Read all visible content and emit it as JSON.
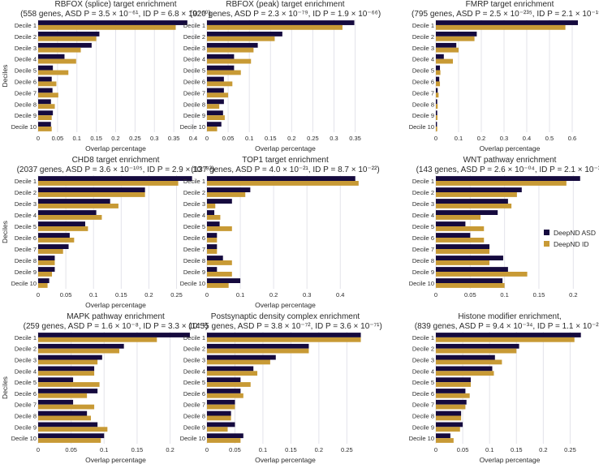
{
  "colors": {
    "asd": "#150a3e",
    "id": "#c89a35",
    "grid": "#e3e3ea",
    "text": "#2a2a2a"
  },
  "legend": {
    "items": [
      "DeepND ASD",
      "DeepND ID"
    ],
    "placement": "right, middle row"
  },
  "chart_data": [
    {
      "type": "bar",
      "orientation": "horizontal",
      "title": "RBFOX (splice) target enrichment",
      "subtitle": "(558 genes, ASD P = 3.5 × 10⁻⁶¹, ID P = 6.8 × 10⁻⁵⁰)",
      "xlabel": "Overlap percentage",
      "ylabel": "Deciles",
      "xlim": [
        0,
        0.4
      ],
      "xticks": [
        0,
        0.05,
        0.1,
        0.15,
        0.2,
        0.25,
        0.3,
        0.35,
        0.4
      ],
      "xtick_labels": [
        "0",
        "0.05",
        "0.1",
        "0.15",
        "0.2",
        "0.25",
        "0.3",
        "0.35",
        "0.4"
      ],
      "categories": [
        "Decile 1",
        "Decile 2",
        "Decile 3",
        "Decile 4",
        "Decile 5",
        "Decile 6",
        "Decile 7",
        "Decile 8",
        "Decile 9",
        "Decile 10"
      ],
      "series": [
        {
          "name": "DeepND ASD",
          "values": [
            0.385,
            0.158,
            0.138,
            0.068,
            0.038,
            0.035,
            0.037,
            0.033,
            0.038,
            0.033
          ]
        },
        {
          "name": "DeepND ID",
          "values": [
            0.355,
            0.15,
            0.11,
            0.098,
            0.078,
            0.047,
            0.052,
            0.043,
            0.035,
            0.035
          ]
        }
      ]
    },
    {
      "type": "bar",
      "orientation": "horizontal",
      "title": "RBFOX (peak) target enrichment",
      "subtitle": "(920 genes, ASD P = 2.3 × 10⁻⁷⁹, ID P = 1.9 × 10⁻⁶⁶)",
      "xlabel": "Overlap percentage",
      "ylabel": "",
      "xlim": [
        0,
        0.37
      ],
      "xticks": [
        0,
        0.05,
        0.1,
        0.15,
        0.2,
        0.25,
        0.3,
        0.35
      ],
      "xtick_labels": [
        "0",
        "0.05",
        "0.1",
        "0.15",
        "0.2",
        "0.25",
        "0.3",
        "0.35"
      ],
      "categories": [
        "Decile 1",
        "Decile 2",
        "Decile 3",
        "Decile 4",
        "Decile 5",
        "Decile 6",
        "Decile 7",
        "Decile 8",
        "Decile 9",
        "Decile 10"
      ],
      "series": [
        {
          "name": "DeepND ASD",
          "values": [
            0.348,
            0.178,
            0.12,
            0.064,
            0.064,
            0.04,
            0.04,
            0.04,
            0.038,
            0.034
          ]
        },
        {
          "name": "DeepND ID",
          "values": [
            0.32,
            0.16,
            0.11,
            0.104,
            0.08,
            0.06,
            0.05,
            0.029,
            0.042,
            0.024
          ]
        }
      ]
    },
    {
      "type": "bar",
      "orientation": "horizontal",
      "title": "FMRP target enrichment",
      "subtitle": "(795 genes, ASD P = 2.5 × 10⁻²³⁵, ID P = 2.1 × 10⁻¹⁹⁴)",
      "xlabel": "Overlap percentage",
      "ylabel": "",
      "xlim": [
        0,
        0.65
      ],
      "xticks": [
        0,
        0.1,
        0.2,
        0.3,
        0.4,
        0.5,
        0.6
      ],
      "xtick_labels": [
        "0",
        "0.1",
        "0.2",
        "0.3",
        "0.4",
        "0.5",
        "0.6"
      ],
      "categories": [
        "Decile 1",
        "Decile 2",
        "Decile 3",
        "Decile 4",
        "Decile 5",
        "Decile 6",
        "Decile 7",
        "Decile 8",
        "Decile 9",
        "Decile 10"
      ],
      "series": [
        {
          "name": "DeepND ASD",
          "values": [
            0.625,
            0.18,
            0.09,
            0.035,
            0.018,
            0.015,
            0.008,
            0.006,
            0.006,
            0.005
          ]
        },
        {
          "name": "DeepND ID",
          "values": [
            0.57,
            0.17,
            0.1,
            0.075,
            0.02,
            0.018,
            0.012,
            0.008,
            0.007,
            0.006
          ]
        }
      ]
    },
    {
      "type": "bar",
      "orientation": "horizontal",
      "title": "CHD8 target enrichment",
      "subtitle": "(2037 genes, ASD P = 3.6 × 10⁻¹⁰⁵, ID P = 2.9 × 10⁻⁸³)",
      "xlabel": "Overlap percentage",
      "ylabel": "Deciles",
      "xlim": [
        0,
        0.28
      ],
      "xticks": [
        0,
        0.05,
        0.1,
        0.15,
        0.2,
        0.25
      ],
      "xtick_labels": [
        "0",
        "0.05",
        "0.1",
        "0.15",
        "0.2",
        "0.25"
      ],
      "categories": [
        "Decile 1",
        "Decile 2",
        "Decile 3",
        "Decile 4",
        "Decile 5",
        "Decile 6",
        "Decile 7",
        "Decile 8",
        "Decile 9",
        "Decile 10"
      ],
      "series": [
        {
          "name": "DeepND ASD",
          "values": [
            0.278,
            0.193,
            0.13,
            0.105,
            0.085,
            0.057,
            0.055,
            0.03,
            0.03,
            0.02
          ]
        },
        {
          "name": "DeepND ID",
          "values": [
            0.253,
            0.193,
            0.145,
            0.115,
            0.09,
            0.065,
            0.045,
            0.03,
            0.025,
            0.017
          ]
        }
      ]
    },
    {
      "type": "bar",
      "orientation": "horizontal",
      "title": "TOP1 target enrichment",
      "subtitle": "(137 genes, ASD P = 4.0 × 10⁻²¹, ID P = 8.7 × 10⁻²²)",
      "xlabel": "Overlap percentage",
      "ylabel": "",
      "xlim": [
        0,
        0.47
      ],
      "xticks": [
        0,
        0.1,
        0.2,
        0.3,
        0.4
      ],
      "xtick_labels": [
        "0",
        "0.1",
        "0.2",
        "0.3",
        "0.4"
      ],
      "categories": [
        "Decile 1",
        "Decile 2",
        "Decile 3",
        "Decile 4",
        "Decile 5",
        "Decile 6",
        "Decile 7",
        "Decile 8",
        "Decile 9",
        "Decile 10"
      ],
      "series": [
        {
          "name": "DeepND ASD",
          "values": [
            0.445,
            0.13,
            0.075,
            0.022,
            0.038,
            0.03,
            0.03,
            0.048,
            0.03,
            0.1
          ]
        },
        {
          "name": "DeepND ID",
          "values": [
            0.455,
            0.115,
            0.025,
            0.04,
            0.075,
            0.03,
            0.03,
            0.075,
            0.075,
            0.065
          ]
        }
      ]
    },
    {
      "type": "bar",
      "orientation": "horizontal",
      "title": "WNT pathway enrichment",
      "subtitle": "(143 genes, ASD P = 2.6 × 10⁻⁰⁴, ID P = 2.1 × 10⁻³)",
      "xlabel": "",
      "ylabel": "",
      "xlim": [
        0,
        0.215
      ],
      "xticks": [
        0,
        0.05,
        0.1,
        0.15,
        0.2
      ],
      "xtick_labels": [
        "0",
        "0.05",
        "0.1",
        "0.15",
        "0.2"
      ],
      "categories": [
        "Decile 1",
        "Decile 2",
        "Decile 3",
        "Decile 4",
        "Decile 5",
        "Decile 6",
        "Decile 7",
        "Decile 8",
        "Decile 9",
        "Decile 10"
      ],
      "series": [
        {
          "name": "DeepND ASD",
          "values": [
            0.21,
            0.125,
            0.105,
            0.09,
            0.043,
            0.05,
            0.078,
            0.098,
            0.105,
            0.097
          ]
        },
        {
          "name": "DeepND ID",
          "values": [
            0.19,
            0.118,
            0.11,
            0.065,
            0.07,
            0.07,
            0.078,
            0.078,
            0.133,
            0.1
          ]
        }
      ]
    },
    {
      "type": "bar",
      "orientation": "horizontal",
      "title": "MAPK pathway enrichment",
      "subtitle": "(259 genes, ASD P = 1.6 × 10⁻⁸, ID P = 3.3 × 10⁻⁴)",
      "xlabel": "Overlap percentage",
      "ylabel": "Deciles",
      "xlim": [
        0,
        0.235
      ],
      "xticks": [
        0,
        0.05,
        0.1,
        0.15,
        0.2
      ],
      "xtick_labels": [
        "0",
        "0.05",
        "0.1",
        "0.15",
        "0.2"
      ],
      "categories": [
        "Decile 1",
        "Decile 2",
        "Decile 3",
        "Decile 4",
        "Decile 5",
        "Decile 6",
        "Decile 7",
        "Decile 8",
        "Decile 9",
        "Decile 10"
      ],
      "series": [
        {
          "name": "DeepND ASD",
          "values": [
            0.23,
            0.13,
            0.097,
            0.085,
            0.053,
            0.09,
            0.053,
            0.074,
            0.09,
            0.1
          ]
        },
        {
          "name": "DeepND ID",
          "values": [
            0.18,
            0.123,
            0.09,
            0.085,
            0.093,
            0.074,
            0.085,
            0.08,
            0.105,
            0.095
          ]
        }
      ]
    },
    {
      "type": "bar",
      "orientation": "horizontal",
      "title": "Postsynaptic density complex enrichment",
      "subtitle": "(1455 genes, ASD P = 3.8 × 10⁻⁷², ID P = 3.6 × 10⁻⁷¹)",
      "xlabel": "Overlap percentage",
      "ylabel": "",
      "xlim": [
        0,
        0.28
      ],
      "xticks": [
        0,
        0.05,
        0.1,
        0.15,
        0.2,
        0.25
      ],
      "xtick_labels": [
        "0",
        "0.05",
        "0.1",
        "0.15",
        "0.2",
        "0.25"
      ],
      "categories": [
        "Decile 1",
        "Decile 2",
        "Decile 3",
        "Decile 4",
        "Decile 5",
        "Decile 6",
        "Decile 7",
        "Decile 8",
        "Decile 9",
        "Decile 10"
      ],
      "series": [
        {
          "name": "DeepND ASD",
          "values": [
            0.275,
            0.182,
            0.123,
            0.083,
            0.06,
            0.06,
            0.05,
            0.043,
            0.05,
            0.065
          ]
        },
        {
          "name": "DeepND ID",
          "values": [
            0.275,
            0.182,
            0.113,
            0.09,
            0.078,
            0.065,
            0.05,
            0.043,
            0.037,
            0.06
          ]
        }
      ]
    },
    {
      "type": "bar",
      "orientation": "horizontal",
      "title": "Histone modifier enrichment,",
      "subtitle": "(839 genes, ASD P = 9.4 × 10⁻³⁴, ID P = 1.1 × 10⁻²⁹)",
      "xlabel": "Overlap percentage",
      "ylabel": "",
      "xlim": [
        0,
        0.275
      ],
      "xticks": [
        0,
        0.05,
        0.1,
        0.15,
        0.2,
        0.25
      ],
      "xtick_labels": [
        "0",
        "0.05",
        "0.1",
        "0.15",
        "0.2",
        "0.25"
      ],
      "categories": [
        "Decile 1",
        "Decile 2",
        "Decile 3",
        "Decile 4",
        "Decile 5",
        "Decile 6",
        "Decile 7",
        "Decile 8",
        "Decile 9",
        "Decile 10"
      ],
      "series": [
        {
          "name": "DeepND ASD",
          "values": [
            0.27,
            0.155,
            0.11,
            0.105,
            0.065,
            0.055,
            0.057,
            0.047,
            0.05,
            0.027
          ]
        },
        {
          "name": "DeepND ID",
          "values": [
            0.258,
            0.15,
            0.123,
            0.108,
            0.065,
            0.063,
            0.055,
            0.047,
            0.045,
            0.033
          ]
        }
      ]
    }
  ]
}
